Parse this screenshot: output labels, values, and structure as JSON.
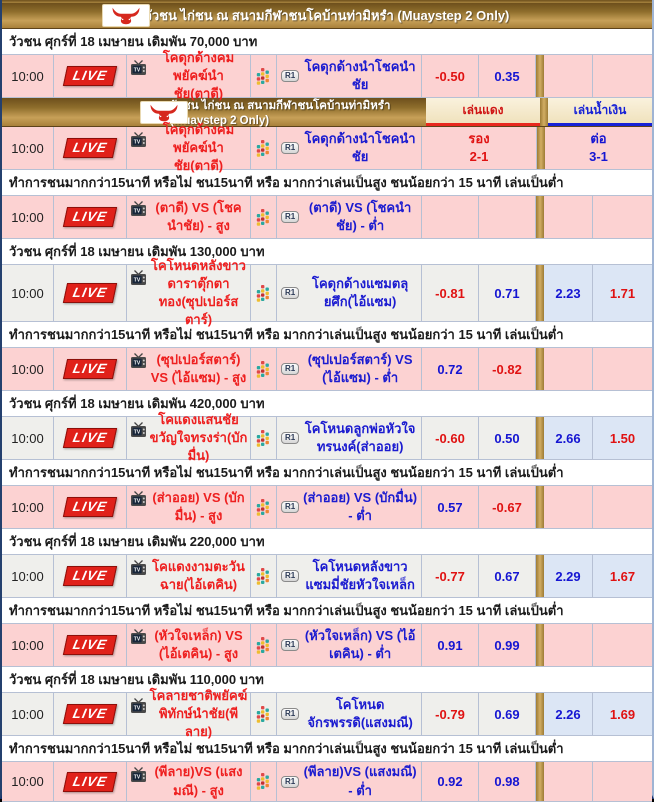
{
  "title_bar": {
    "title": "วัวชน ไก่ชน ณ สนามกีฬาชนโคบ้านท่ามิหรำ (Muaystep 2 Only)"
  },
  "bet_columns": {
    "red": "เล่นแดง",
    "blue": "เล่นน้ำเงิน"
  },
  "labels": {
    "live": "LIVE",
    "r1": "R1"
  },
  "note_text": "ทำการชนมากกว่า15นาที หรือไม่ ชน15นาที หรือ มากกว่าเล่นเป็นสูง ชนน้อยกว่า 15 นาที เล่นเป็นต่ำ",
  "icons": {
    "bull": "bull-icon",
    "tv": "tv-icon",
    "stats": "stats-icon"
  },
  "colors": {
    "gold_dark": "#6d4f1c",
    "gold_light": "#c7a058",
    "pink": "#fcd2d2",
    "gray": "#efefec",
    "light_blue": "#dce6f5",
    "odds_red": "#e01212",
    "odds_blue": "#1515d2",
    "border": "#b6c0d4",
    "cream": "#f5e8cb"
  },
  "rows": [
    {
      "type": "title"
    },
    {
      "type": "date",
      "text": "วัวชน ศุกร์ที่ 18 เมษายน เดิมพัน 70,000 บาท"
    },
    {
      "type": "match",
      "bg": "pink",
      "time": "10:00",
      "red_team": "โคดุกด้างคมพยัคฆ์นำชัย(ตาดี)",
      "blue_team": "โคดุกด้างนำโชคนำชัย",
      "odds": [
        {
          "v": "-0.50",
          "c": "red"
        },
        {
          "v": "0.35",
          "c": "blue"
        },
        {
          "v": "",
          "c": ""
        },
        {
          "v": "",
          "c": ""
        }
      ]
    },
    {
      "type": "title2"
    },
    {
      "type": "match",
      "bg": "pink",
      "time": "10:00",
      "red_team": "โคดุกด้างคมพยัคฆ์นำชัย(ตาดี)",
      "blue_team": "โคดุกด้างนำโชคนำชัย",
      "merged": {
        "red_lines": [
          "รอง",
          "2-1"
        ],
        "blue_lines": [
          "ต่อ",
          "3-1"
        ]
      }
    },
    {
      "type": "note"
    },
    {
      "type": "match",
      "bg": "pink",
      "time": "10:00",
      "red_team": "(ตาดี) VS (โชคนำชัย) - สูง",
      "blue_team": "(ตาดี) VS (โชคนำชัย) - ต่ำ",
      "odds": [
        {
          "v": "",
          "c": ""
        },
        {
          "v": "",
          "c": ""
        },
        {
          "v": "",
          "c": ""
        },
        {
          "v": "",
          "c": ""
        }
      ]
    },
    {
      "type": "date",
      "text": "วัวชน ศุกร์ที่ 18 เมษายน เดิมพัน 130,000 บาท"
    },
    {
      "type": "match",
      "bg": "gray",
      "h": 57,
      "time": "10:00",
      "red_team": "โคโหนดหลังขาวดาราตุ๊กตาทอง(ซุปเปอร์สตาร์)",
      "blue_team": "โคดุกด้างแซมตลุยศึก(ไอ้แซม)",
      "odds": [
        {
          "v": "-0.81",
          "c": "red"
        },
        {
          "v": "0.71",
          "c": "blue"
        },
        {
          "v": "2.23",
          "c": "blue"
        },
        {
          "v": "1.71",
          "c": "red"
        }
      ]
    },
    {
      "type": "note"
    },
    {
      "type": "match",
      "bg": "pink",
      "time": "10:00",
      "red_team": "(ซุปเปอร์สตาร์) VS (ไอ้แซม) - สูง",
      "blue_team": "(ซุปเปอร์สตาร์) VS (ไอ้แซม) - ต่ำ",
      "odds": [
        {
          "v": "0.72",
          "c": "blue"
        },
        {
          "v": "-0.82",
          "c": "red"
        },
        {
          "v": "",
          "c": ""
        },
        {
          "v": "",
          "c": ""
        }
      ]
    },
    {
      "type": "date",
      "text": "วัวชน ศุกร์ที่ 18 เมษายน เดิมพัน 420,000 บาท"
    },
    {
      "type": "match",
      "bg": "gray",
      "time": "10:00",
      "red_team": "โคแดงแสนชัยขวัญใจทรงร่า(บักมื่น)",
      "blue_team": "โคโหนดลูกพ่อหัวใจทรนงค์(ส่าออย)",
      "odds": [
        {
          "v": "-0.60",
          "c": "red"
        },
        {
          "v": "0.50",
          "c": "blue"
        },
        {
          "v": "2.66",
          "c": "blue"
        },
        {
          "v": "1.50",
          "c": "red"
        }
      ]
    },
    {
      "type": "note"
    },
    {
      "type": "match",
      "bg": "pink",
      "time": "10:00",
      "red_team": "(ส่าออย) VS (บักมื่น) - สูง",
      "blue_team": "(ส่าออย) VS (บักมื่น) - ต่ำ",
      "odds": [
        {
          "v": "0.57",
          "c": "blue"
        },
        {
          "v": "-0.67",
          "c": "red"
        },
        {
          "v": "",
          "c": ""
        },
        {
          "v": "",
          "c": ""
        }
      ]
    },
    {
      "type": "date",
      "text": "วัวชน ศุกร์ที่ 18 เมษายน เดิมพัน 220,000 บาท"
    },
    {
      "type": "match",
      "bg": "gray",
      "time": "10:00",
      "red_team": "โคแดงงามตะวันฉาย(ไอ้เตคิน)",
      "blue_team": "โคโหนดหลังขาวแซมมี่ชัยหัวใจเหล็ก",
      "odds": [
        {
          "v": "-0.77",
          "c": "red"
        },
        {
          "v": "0.67",
          "c": "blue"
        },
        {
          "v": "2.29",
          "c": "blue"
        },
        {
          "v": "1.67",
          "c": "red"
        }
      ]
    },
    {
      "type": "note"
    },
    {
      "type": "match",
      "bg": "pink",
      "time": "10:00",
      "red_team": "(หัวใจเหล็ก) VS (ไอ้เตคิน) - สูง",
      "blue_team": "(หัวใจเหล็ก) VS (ไอ้เตคิน) - ต่ำ",
      "odds": [
        {
          "v": "0.91",
          "c": "blue"
        },
        {
          "v": "0.99",
          "c": "blue"
        },
        {
          "v": "",
          "c": ""
        },
        {
          "v": "",
          "c": ""
        }
      ]
    },
    {
      "type": "date",
      "text": "วัวชน ศุกร์ที่ 18 เมษายน เดิมพัน 110,000 บาท"
    },
    {
      "type": "match",
      "bg": "gray",
      "time": "10:00",
      "red_team": "โคลายชาติพยัคฆ์พิทักษ์นำชัย(พีลาย)",
      "blue_team": "โคโหนดจักรพรรดิ(แสงมณี)",
      "odds": [
        {
          "v": "-0.79",
          "c": "red"
        },
        {
          "v": "0.69",
          "c": "blue"
        },
        {
          "v": "2.26",
          "c": "blue"
        },
        {
          "v": "1.69",
          "c": "red"
        }
      ]
    },
    {
      "type": "note"
    },
    {
      "type": "match",
      "bg": "pink",
      "h": 40,
      "time": "10:00",
      "red_team": "(พีลาย)VS (แสงมณี) - สูง",
      "blue_team": "(พีลาย)VS (แสงมณี) - ต่ำ",
      "odds": [
        {
          "v": "0.92",
          "c": "blue"
        },
        {
          "v": "0.98",
          "c": "blue"
        },
        {
          "v": "",
          "c": ""
        },
        {
          "v": "",
          "c": ""
        }
      ]
    }
  ]
}
